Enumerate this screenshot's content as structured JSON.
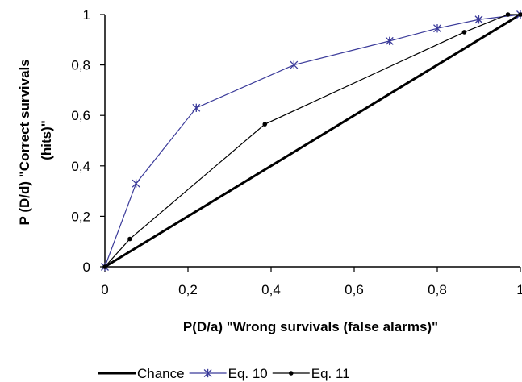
{
  "chart_data": {
    "type": "line",
    "title": "",
    "xlabel": "P(D/a) \"Wrong survivals (false alarms)\"",
    "ylabel_lines": [
      "P (D/d) \"Correct survivals",
      "(hits)\""
    ],
    "xlim": [
      0,
      1
    ],
    "ylim": [
      0,
      1
    ],
    "x_ticks": [
      0,
      0.2,
      0.4,
      0.6,
      0.8,
      1
    ],
    "x_tick_labels": [
      "0",
      "0,2",
      "0,4",
      "0,6",
      "0,8",
      "1"
    ],
    "y_ticks": [
      0,
      0.2,
      0.4,
      0.6,
      0.8,
      1
    ],
    "y_tick_labels": [
      "0",
      "0,2",
      "0,4",
      "0,6",
      "0,8",
      "1"
    ],
    "grid": false,
    "legend_position": "bottom",
    "series": [
      {
        "name": "Chance",
        "color": "#000000",
        "marker": "none",
        "x": [
          0,
          1
        ],
        "y": [
          0,
          1
        ]
      },
      {
        "name": "Eq. 10",
        "color": "#3b3b9a",
        "marker": "asterisk",
        "x": [
          0,
          0.075,
          0.22,
          0.455,
          0.685,
          0.8,
          0.9,
          1
        ],
        "y": [
          0,
          0.33,
          0.63,
          0.8,
          0.895,
          0.945,
          0.98,
          1
        ]
      },
      {
        "name": "Eq. 11",
        "color": "#000000",
        "marker": "dot",
        "x": [
          0,
          0.06,
          0.385,
          0.865,
          0.97,
          1
        ],
        "y": [
          0,
          0.11,
          0.565,
          0.93,
          1,
          1
        ]
      }
    ]
  }
}
